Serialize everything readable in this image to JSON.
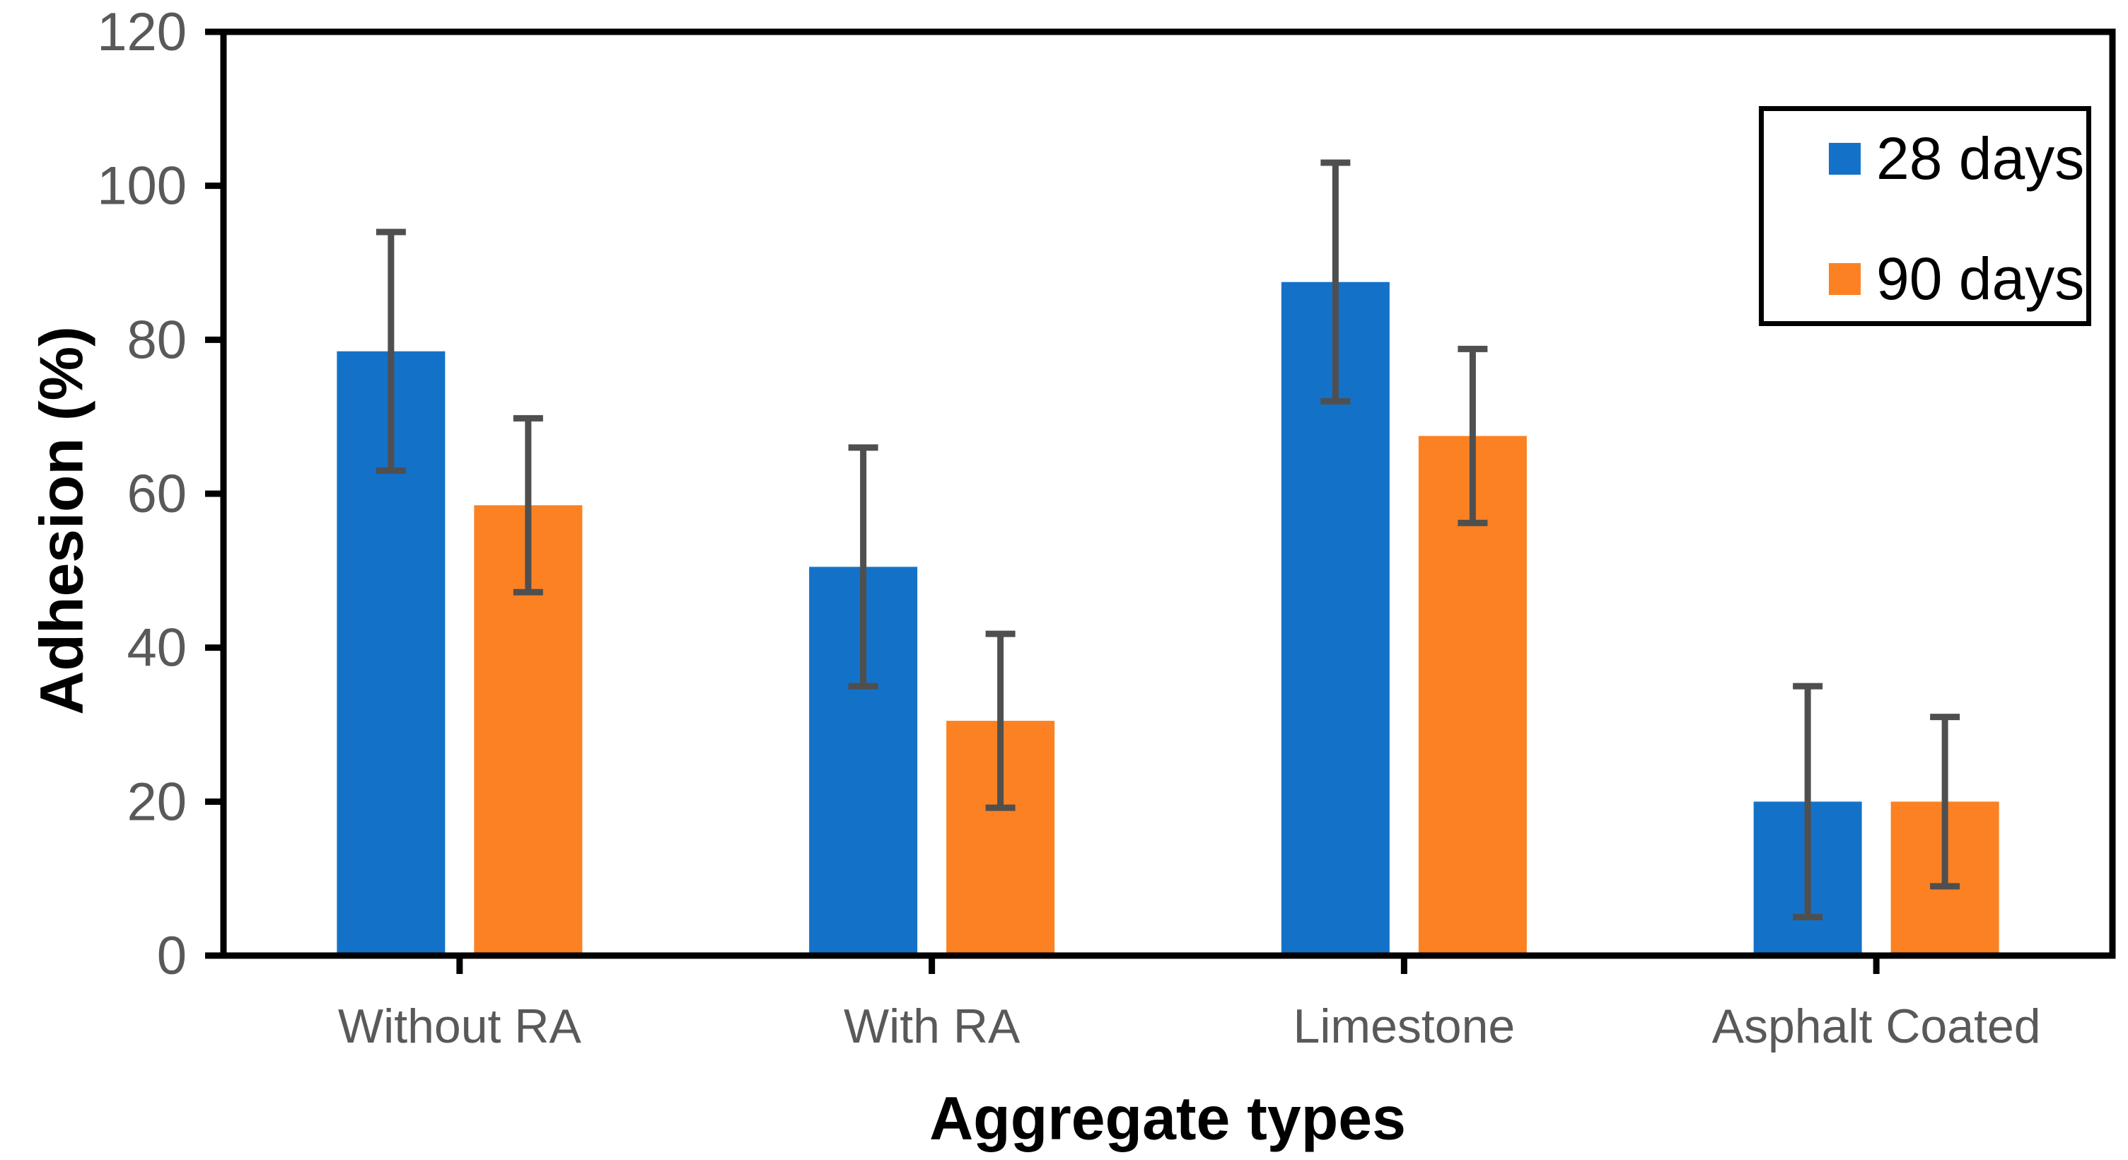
{
  "figure": {
    "background": "#ffffff"
  },
  "chart_data": {
    "type": "bar",
    "title": "",
    "xlabel": "Aggregate types",
    "ylabel": "Adhesion (%)",
    "categories": [
      "Without RA",
      "With RA",
      "Limestone",
      "Asphalt Coated"
    ],
    "series": [
      {
        "name": "28 days",
        "color": "#1372C8",
        "values": [
          78.5,
          50.5,
          87.5,
          20
        ],
        "errors": [
          15.5,
          15.5,
          15.5,
          15
        ]
      },
      {
        "name": "90 days",
        "color": "#FB8122",
        "values": [
          58.5,
          30.5,
          67.5,
          20
        ],
        "errors": [
          11.3,
          11.3,
          11.3,
          11
        ]
      }
    ],
    "ylim": [
      0,
      120
    ],
    "yticks": [
      0,
      20,
      40,
      60,
      80,
      100,
      120
    ],
    "grid": false,
    "legend_position": "top-right",
    "colors": {
      "axis": "#000000",
      "plot_border": "#000000",
      "tick_label": "#595959",
      "category_label": "#595959",
      "error_bar": "#4F4F4F",
      "axis_title": "#000000",
      "legend_text": "#000000",
      "legend_border": "#000000"
    }
  }
}
